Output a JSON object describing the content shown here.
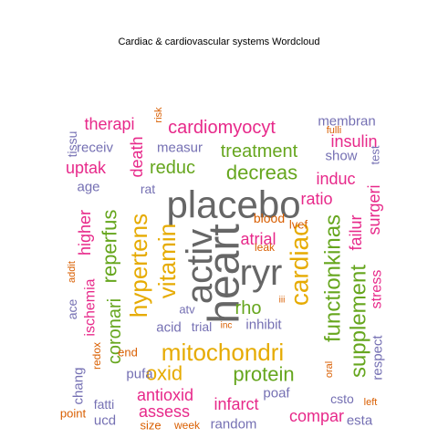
{
  "chart_data": {
    "type": "wordcloud",
    "title": "Cardiac & cardiovascular systems  Wordcloud",
    "palette": {
      "gray": "#666666",
      "green": "#66a61e",
      "gold": "#e6ab02",
      "magenta": "#e7298a",
      "purple": "#7570b3",
      "orange": "#d95f02"
    },
    "words": [
      {
        "text": "heart",
        "color": "gray",
        "size": 48,
        "rotation": 270
      },
      {
        "text": "placebo",
        "color": "gray",
        "size": 42,
        "rotation": 0
      },
      {
        "text": "activ",
        "color": "gray",
        "size": 40,
        "rotation": 270
      },
      {
        "text": "ryr",
        "color": "gray",
        "size": 40,
        "rotation": 0
      },
      {
        "text": "cardiac",
        "color": "gold",
        "size": 28,
        "rotation": 270
      },
      {
        "text": "mitochondri",
        "color": "gold",
        "size": 26,
        "rotation": 0
      },
      {
        "text": "vitamin",
        "color": "gold",
        "size": 26,
        "rotation": 270
      },
      {
        "text": "hypertens",
        "color": "gold",
        "size": 26,
        "rotation": 270
      },
      {
        "text": "functionkinas",
        "color": "green",
        "size": 24,
        "rotation": 270
      },
      {
        "text": "supplement",
        "color": "green",
        "size": 24,
        "rotation": 270
      },
      {
        "text": "oxid",
        "color": "gold",
        "size": 22,
        "rotation": 0
      },
      {
        "text": "protein",
        "color": "green",
        "size": 22,
        "rotation": 0
      },
      {
        "text": "reperfus",
        "color": "green",
        "size": 22,
        "rotation": 270
      },
      {
        "text": "decreas",
        "color": "green",
        "size": 22,
        "rotation": 0
      },
      {
        "text": "cardiomyocyt",
        "color": "magenta",
        "size": 20,
        "rotation": 0
      },
      {
        "text": "treatment",
        "color": "green",
        "size": 20,
        "rotation": 0
      },
      {
        "text": "reduc",
        "color": "green",
        "size": 20,
        "rotation": 0
      },
      {
        "text": "rho",
        "color": "green",
        "size": 20,
        "rotation": 0
      },
      {
        "text": "coronari",
        "color": "green",
        "size": 20,
        "rotation": 270
      },
      {
        "text": "atrial",
        "color": "magenta",
        "size": 18,
        "rotation": 0
      },
      {
        "text": "therapi",
        "color": "magenta",
        "size": 18,
        "rotation": 0
      },
      {
        "text": "insulin",
        "color": "magenta",
        "size": 18,
        "rotation": 0
      },
      {
        "text": "ratio",
        "color": "magenta",
        "size": 18,
        "rotation": 0
      },
      {
        "text": "uptak",
        "color": "magenta",
        "size": 18,
        "rotation": 0
      },
      {
        "text": "induc",
        "color": "magenta",
        "size": 18,
        "rotation": 0
      },
      {
        "text": "antioxid",
        "color": "magenta",
        "size": 18,
        "rotation": 0
      },
      {
        "text": "assess",
        "color": "magenta",
        "size": 18,
        "rotation": 0
      },
      {
        "text": "infarct",
        "color": "magenta",
        "size": 18,
        "rotation": 0
      },
      {
        "text": "compar",
        "color": "magenta",
        "size": 18,
        "rotation": 0
      },
      {
        "text": "failur",
        "color": "magenta",
        "size": 18,
        "rotation": 270
      },
      {
        "text": "higher",
        "color": "magenta",
        "size": 18,
        "rotation": 270
      },
      {
        "text": "death",
        "color": "magenta",
        "size": 18,
        "rotation": 270
      },
      {
        "text": "surgeri",
        "color": "magenta",
        "size": 18,
        "rotation": 270
      },
      {
        "text": "stress",
        "color": "magenta",
        "size": 16,
        "rotation": 270
      },
      {
        "text": "ischemia",
        "color": "magenta",
        "size": 16,
        "rotation": 270
      },
      {
        "text": "membran",
        "color": "purple",
        "size": 15,
        "rotation": 0
      },
      {
        "text": "show",
        "color": "purple",
        "size": 15,
        "rotation": 0
      },
      {
        "text": "measur",
        "color": "purple",
        "size": 15,
        "rotation": 0
      },
      {
        "text": "receiv",
        "color": "purple",
        "size": 15,
        "rotation": 0
      },
      {
        "text": "age",
        "color": "purple",
        "size": 15,
        "rotation": 0
      },
      {
        "text": "acid",
        "color": "purple",
        "size": 15,
        "rotation": 0
      },
      {
        "text": "inhibit",
        "color": "purple",
        "size": 15,
        "rotation": 0
      },
      {
        "text": "pufa",
        "color": "purple",
        "size": 15,
        "rotation": 0
      },
      {
        "text": "poaf",
        "color": "purple",
        "size": 15,
        "rotation": 0
      },
      {
        "text": "random",
        "color": "purple",
        "size": 15,
        "rotation": 0
      },
      {
        "text": "ucd",
        "color": "purple",
        "size": 15,
        "rotation": 0
      },
      {
        "text": "esta",
        "color": "purple",
        "size": 15,
        "rotation": 0
      },
      {
        "text": "chang",
        "color": "purple",
        "size": 15,
        "rotation": 270
      },
      {
        "text": "respect",
        "color": "purple",
        "size": 15,
        "rotation": 270
      },
      {
        "text": "fatti",
        "color": "purple",
        "size": 14,
        "rotation": 0
      },
      {
        "text": "csto",
        "color": "purple",
        "size": 14,
        "rotation": 0
      },
      {
        "text": "ace",
        "color": "purple",
        "size": 14,
        "rotation": 270
      },
      {
        "text": "tissu",
        "color": "purple",
        "size": 14,
        "rotation": 270
      },
      {
        "text": "trial",
        "color": "purple",
        "size": 14,
        "rotation": 0
      },
      {
        "text": "atv",
        "color": "purple",
        "size": 13,
        "rotation": 0
      },
      {
        "text": "rat",
        "color": "purple",
        "size": 14,
        "rotation": 0
      },
      {
        "text": "test",
        "color": "purple",
        "size": 13,
        "rotation": 270
      },
      {
        "text": "blood",
        "color": "orange",
        "size": 14,
        "rotation": 0
      },
      {
        "text": "lvef",
        "color": "orange",
        "size": 13,
        "rotation": 0
      },
      {
        "text": "leak",
        "color": "orange",
        "size": 12,
        "rotation": 0
      },
      {
        "text": "end",
        "color": "orange",
        "size": 13,
        "rotation": 0
      },
      {
        "text": "redox",
        "color": "orange",
        "size": 12,
        "rotation": 270
      },
      {
        "text": "size",
        "color": "orange",
        "size": 13,
        "rotation": 0
      },
      {
        "text": "week",
        "color": "orange",
        "size": 12,
        "rotation": 0
      },
      {
        "text": "point",
        "color": "orange",
        "size": 13,
        "rotation": 0
      },
      {
        "text": "left",
        "color": "orange",
        "size": 11,
        "rotation": 0
      },
      {
        "text": "oral",
        "color": "orange",
        "size": 11,
        "rotation": 270
      },
      {
        "text": "addit",
        "color": "orange",
        "size": 11,
        "rotation": 270
      },
      {
        "text": "risk",
        "color": "orange",
        "size": 11,
        "rotation": 270
      },
      {
        "text": "fulli",
        "color": "orange",
        "size": 11,
        "rotation": 0
      },
      {
        "text": "inc",
        "color": "orange",
        "size": 10,
        "rotation": 0
      },
      {
        "text": "iii",
        "color": "orange",
        "size": 10,
        "rotation": 0
      }
    ]
  }
}
